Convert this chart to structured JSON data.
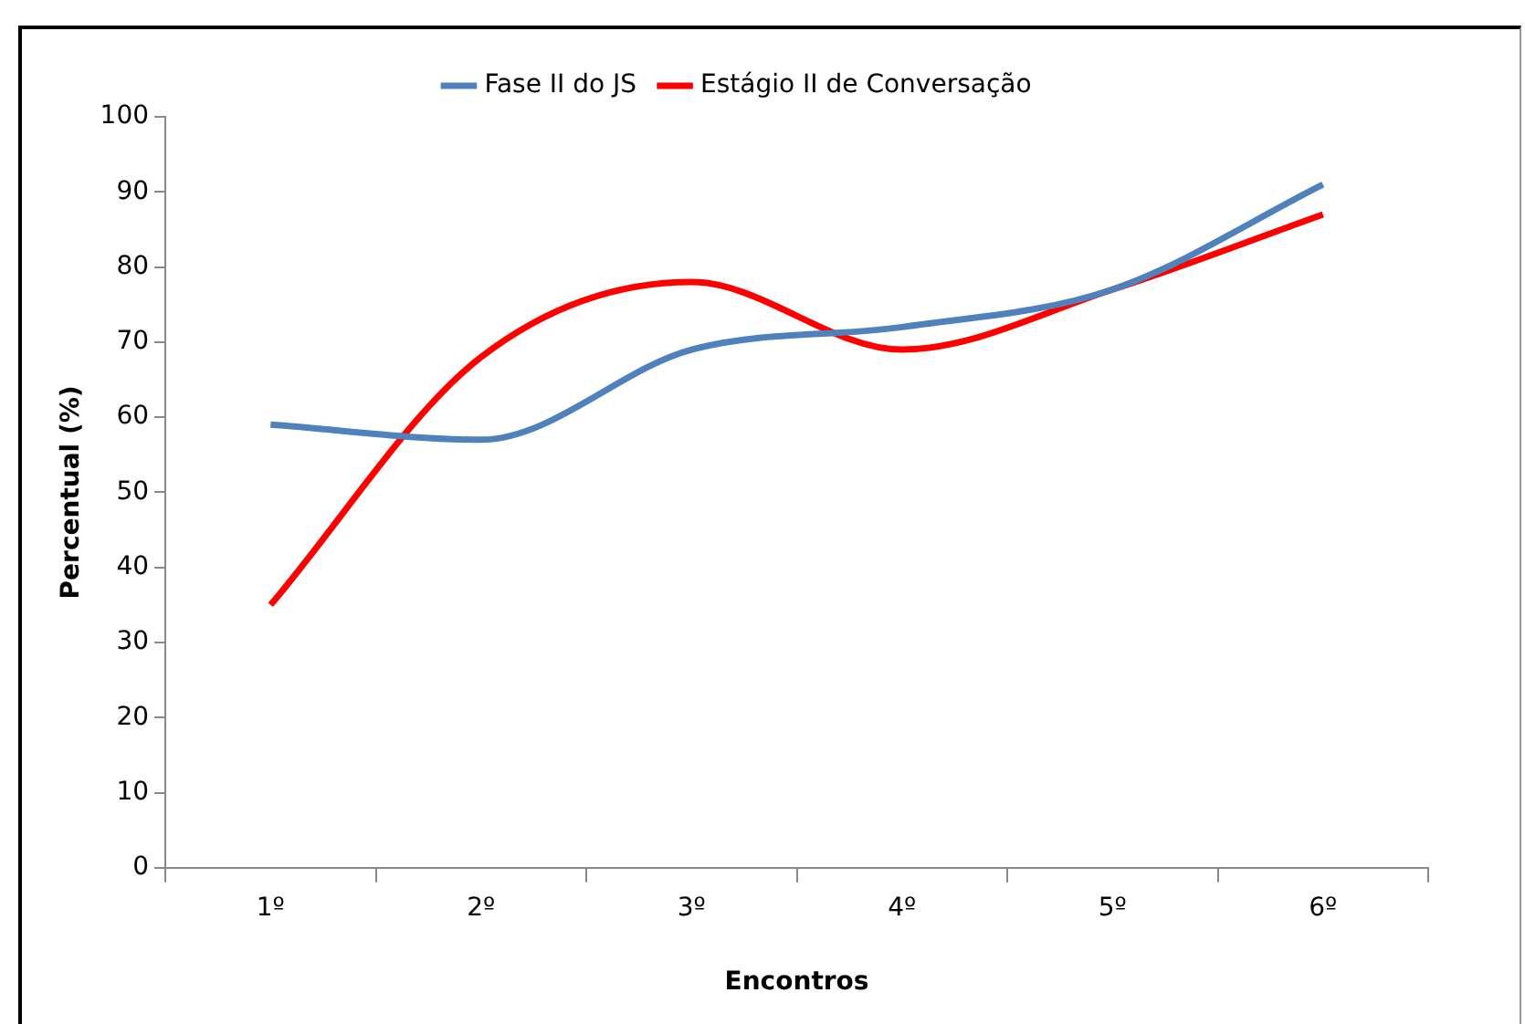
{
  "chart_data": {
    "type": "line",
    "xlabel": "Encontros",
    "ylabel": "Percentual (%)",
    "categories": [
      "1º",
      "2º",
      "3º",
      "4º",
      "5º",
      "6º"
    ],
    "series": [
      {
        "name": "Fase II do JS",
        "color": "#4f81bd",
        "values": [
          59,
          57,
          69,
          72,
          77,
          91
        ]
      },
      {
        "name": "Estágio II de Conversação",
        "color": "#ff0000",
        "values": [
          35,
          68,
          78,
          69,
          77,
          87
        ]
      }
    ],
    "ylim": [
      0,
      100
    ],
    "yticks": [
      0,
      10,
      20,
      30,
      40,
      50,
      60,
      70,
      80,
      90,
      100
    ],
    "grid": false,
    "legend": "top",
    "marker": "none",
    "line_style": "solid"
  }
}
